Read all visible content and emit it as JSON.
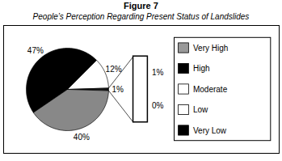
{
  "chart_data": {
    "type": "pie",
    "title": "Figure 7",
    "subtitle": "People’s Perception Regarding Present Status of Landslides",
    "values": [
      47,
      12,
      1,
      40
    ],
    "value_labels": [
      "47%",
      "12%",
      "1%",
      "40%"
    ],
    "colors": [
      "#000000",
      "#ffffff",
      "#111111",
      "#888888"
    ],
    "data_labels": true,
    "legend_entries": [
      {
        "name": "Very High",
        "color": "#999999"
      },
      {
        "name": "High",
        "color": "#000000"
      },
      {
        "name": "Moderate",
        "color": "#ffffff"
      },
      {
        "name": "Low",
        "color": "#ffffff"
      },
      {
        "name": "Very Low",
        "color": "#000000"
      }
    ],
    "zoom_values": [
      1,
      0
    ],
    "zoom_value_labels": [
      "1%",
      "0%"
    ]
  }
}
